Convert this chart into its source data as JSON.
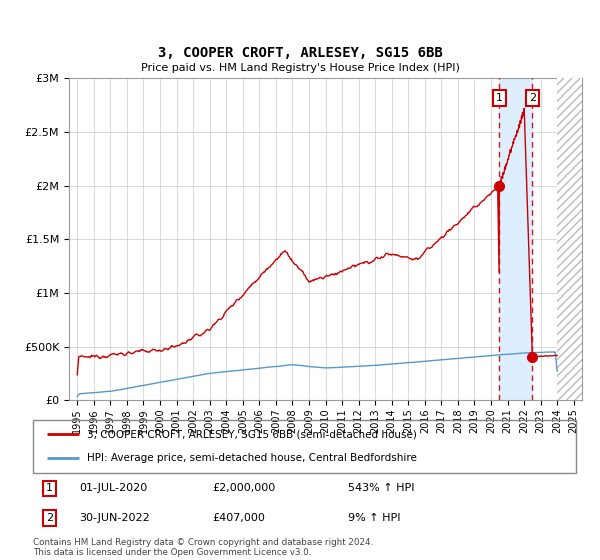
{
  "title": "3, COOPER CROFT, ARLESEY, SG15 6BB",
  "subtitle": "Price paid vs. HM Land Registry's House Price Index (HPI)",
  "x_start": 1994.5,
  "x_end": 2025.5,
  "y_min": 0,
  "y_max": 3000000,
  "y_ticks": [
    0,
    500000,
    1000000,
    1500000,
    2000000,
    2500000,
    3000000
  ],
  "y_tick_labels": [
    "£0",
    "£500K",
    "£1M",
    "£1.5M",
    "£2M",
    "£2.5M",
    "£3M"
  ],
  "x_ticks": [
    1995,
    1996,
    1997,
    1998,
    1999,
    2000,
    2001,
    2002,
    2003,
    2004,
    2005,
    2006,
    2007,
    2008,
    2009,
    2010,
    2011,
    2012,
    2013,
    2014,
    2015,
    2016,
    2017,
    2018,
    2019,
    2020,
    2021,
    2022,
    2023,
    2024,
    2025
  ],
  "point1_x": 2020.5,
  "point1_y": 2000000,
  "point2_x": 2022.5,
  "point2_y": 407000,
  "point1_date": "01-JUL-2020",
  "point1_price": "£2,000,000",
  "point1_hpi": "543% ↑ HPI",
  "point2_date": "30-JUN-2022",
  "point2_price": "£407,000",
  "point2_hpi": "9% ↑ HPI",
  "red_line_color": "#cc0000",
  "blue_line_color": "#5599cc",
  "hatch_start": 2024.0,
  "shade_start": 2020.5,
  "shade_end": 2022.5,
  "shade_color": "#ddeeff",
  "footer": "Contains HM Land Registry data © Crown copyright and database right 2024.\nThis data is licensed under the Open Government Licence v3.0.",
  "legend_line1": "3, COOPER CROFT, ARLESEY, SG15 6BB (semi-detached house)",
  "legend_line2": "HPI: Average price, semi-detached house, Central Bedfordshire"
}
